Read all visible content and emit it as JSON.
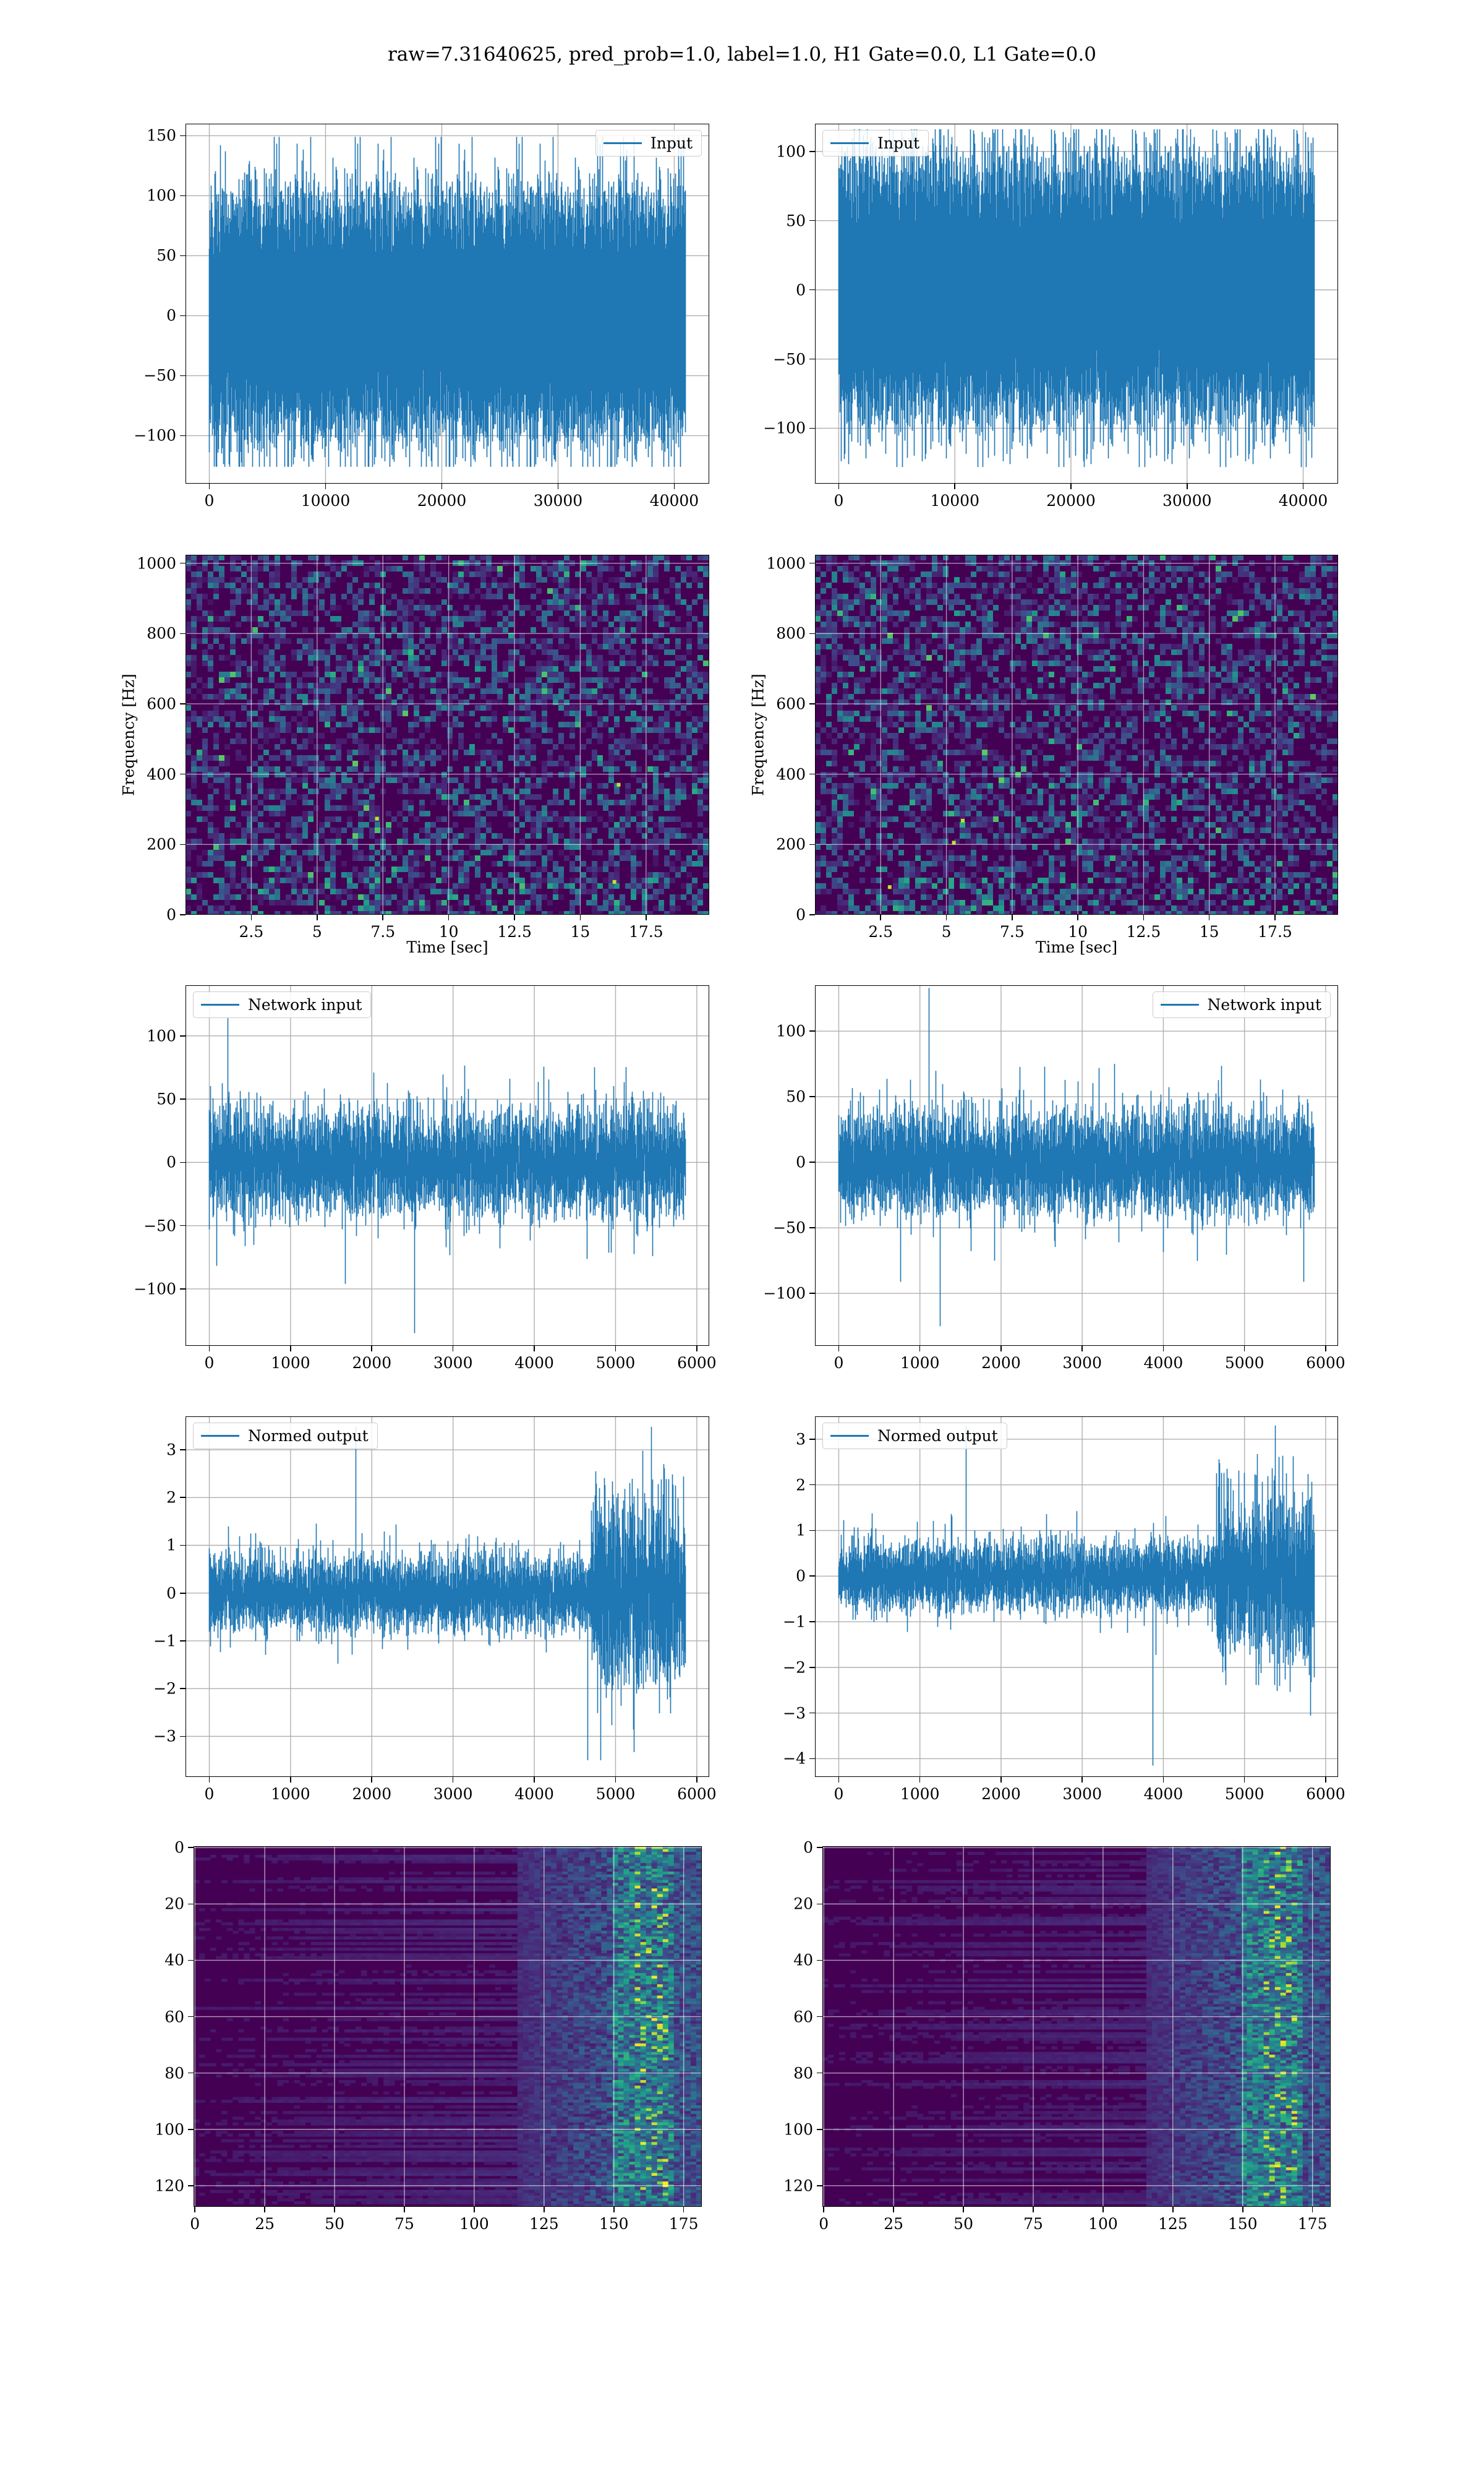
{
  "figure": {
    "title": "raw=7.31640625, pred_prob=1.0, label=1.0, H1 Gate=0.0, L1 Gate=0.0"
  },
  "colors": {
    "line": "#1f77b4",
    "grid": "#b0b0b0",
    "colormap": "viridis"
  },
  "chart_data": [
    {
      "id": "input-h1",
      "type": "line",
      "row": 0,
      "col": 0,
      "series": [
        {
          "name": "Input",
          "n_points": 40960,
          "std": 28,
          "spike_max": 149,
          "spike_min": -126
        }
      ],
      "legend": "upper right",
      "xlim": [
        -2048,
        43008
      ],
      "ylim": [
        -140,
        160
      ],
      "xticks": [
        0,
        10000,
        20000,
        30000,
        40000
      ],
      "yticks": [
        150,
        100,
        50,
        0,
        -50,
        -100
      ],
      "xlabel": "",
      "ylabel": "",
      "grid": true
    },
    {
      "id": "input-l1",
      "type": "line",
      "row": 0,
      "col": 1,
      "series": [
        {
          "name": "Input",
          "n_points": 40960,
          "std": 26,
          "spike_max": 116,
          "spike_min": -128
        }
      ],
      "legend": "upper left",
      "xlim": [
        -2048,
        43008
      ],
      "ylim": [
        -140,
        120
      ],
      "xticks": [
        0,
        10000,
        20000,
        30000,
        40000
      ],
      "yticks": [
        100,
        50,
        0,
        -50,
        -100
      ],
      "xlabel": "",
      "ylabel": "",
      "grid": true
    },
    {
      "id": "spectrogram-h1",
      "type": "heatmap",
      "row": 1,
      "col": 0,
      "colormap": "viridis",
      "xlim": [
        0,
        19.9
      ],
      "ylim": [
        0,
        1024
      ],
      "xticks": [
        2.5,
        5.0,
        7.5,
        10.0,
        12.5,
        15.0,
        17.5
      ],
      "yticks": [
        1000,
        800,
        600,
        400,
        200,
        0
      ],
      "xlabel": "Time [sec]",
      "ylabel": "Frequency [Hz]",
      "grid": true
    },
    {
      "id": "spectrogram-l1",
      "type": "heatmap",
      "row": 1,
      "col": 1,
      "colormap": "viridis",
      "xlim": [
        0,
        19.9
      ],
      "ylim": [
        0,
        1024
      ],
      "xticks": [
        2.5,
        5.0,
        7.5,
        10.0,
        12.5,
        15.0,
        17.5
      ],
      "yticks": [
        1000,
        800,
        600,
        400,
        200,
        0
      ],
      "xlabel": "Time [sec]",
      "ylabel": "Frequency [Hz]",
      "grid": true
    },
    {
      "id": "network-input-h1",
      "type": "line",
      "row": 2,
      "col": 0,
      "series": [
        {
          "name": "Network input",
          "n_points": 5860,
          "std": 20,
          "spike_max": 114,
          "spike_min": -135
        }
      ],
      "legend": "upper left",
      "xlim": [
        -293,
        6153
      ],
      "ylim": [
        -145,
        140
      ],
      "xticks": [
        0,
        1000,
        2000,
        3000,
        4000,
        5000,
        6000
      ],
      "yticks": [
        100,
        50,
        0,
        -50,
        -100
      ],
      "xlabel": "",
      "ylabel": "",
      "grid": true
    },
    {
      "id": "network-input-l1",
      "type": "line",
      "row": 2,
      "col": 1,
      "series": [
        {
          "name": "Network input",
          "n_points": 5860,
          "std": 19,
          "spike_max": 133,
          "spike_min": -125
        }
      ],
      "legend": "upper right",
      "xlim": [
        -293,
        6153
      ],
      "ylim": [
        -140,
        135
      ],
      "xticks": [
        0,
        1000,
        2000,
        3000,
        4000,
        5000,
        6000
      ],
      "yticks": [
        100,
        50,
        0,
        -50,
        -100
      ],
      "xlabel": "",
      "ylabel": "",
      "grid": true
    },
    {
      "id": "normed-output-h1",
      "type": "line",
      "row": 3,
      "col": 0,
      "series": [
        {
          "name": "Normed output",
          "n_points": 5860,
          "std": 0.38,
          "burst_start": 4700,
          "burst_std": 0.95,
          "spike_max": 3.48,
          "spike_min": -3.5
        }
      ],
      "legend": "upper left",
      "xlim": [
        -293,
        6153
      ],
      "ylim": [
        -3.85,
        3.7
      ],
      "xticks": [
        0,
        1000,
        2000,
        3000,
        4000,
        5000,
        6000
      ],
      "yticks": [
        3,
        2,
        1,
        0,
        -1,
        -2,
        -3
      ],
      "xlabel": "",
      "ylabel": "",
      "grid": true
    },
    {
      "id": "normed-output-l1",
      "type": "line",
      "row": 3,
      "col": 1,
      "series": [
        {
          "name": "Normed output",
          "n_points": 5860,
          "std": 0.36,
          "burst_start": 4650,
          "burst_std": 0.9,
          "spike_max": 3.3,
          "spike_min": -4.15
        }
      ],
      "legend": "upper left",
      "xlim": [
        -293,
        6153
      ],
      "ylim": [
        -4.4,
        3.5
      ],
      "xticks": [
        0,
        1000,
        2000,
        3000,
        4000,
        5000,
        6000
      ],
      "yticks": [
        3,
        2,
        1,
        0,
        -1,
        -2,
        -3,
        -4
      ],
      "xlabel": "",
      "ylabel": "",
      "grid": true
    },
    {
      "id": "feature-map-h1",
      "type": "heatmap",
      "row": 4,
      "col": 0,
      "colormap": "viridis",
      "xlim": [
        -0.5,
        181.5
      ],
      "ylim": [
        127.5,
        -0.5
      ],
      "xticks": [
        0,
        25,
        50,
        75,
        100,
        125,
        150,
        175
      ],
      "yticks": [
        0,
        20,
        40,
        60,
        80,
        100,
        120
      ],
      "xlabel": "",
      "ylabel": "",
      "grid": true
    },
    {
      "id": "feature-map-l1",
      "type": "heatmap",
      "row": 4,
      "col": 1,
      "colormap": "viridis",
      "xlim": [
        -0.5,
        181.5
      ],
      "ylim": [
        127.5,
        -0.5
      ],
      "xticks": [
        0,
        25,
        50,
        75,
        100,
        125,
        150,
        175
      ],
      "yticks": [
        0,
        20,
        40,
        60,
        80,
        100,
        120
      ],
      "xlabel": "",
      "ylabel": "",
      "grid": true
    }
  ]
}
